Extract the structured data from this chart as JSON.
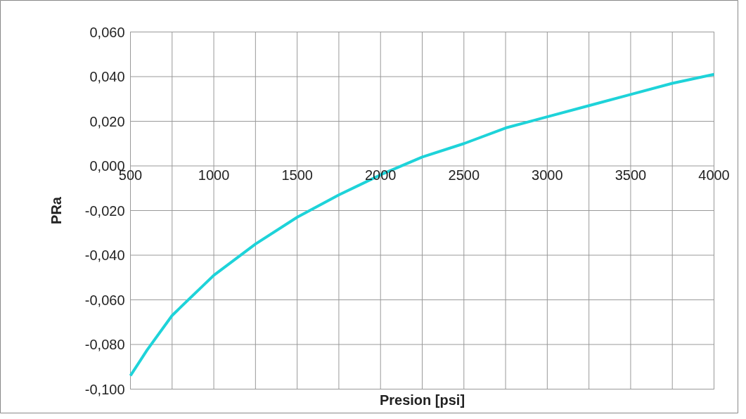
{
  "chart_data": {
    "type": "line",
    "xlabel": "Presion [psi]",
    "ylabel": "PRa",
    "x": [
      500,
      600,
      750,
      1000,
      1250,
      1500,
      1750,
      2000,
      2250,
      2500,
      2750,
      3000,
      3250,
      3500,
      3750,
      4000
    ],
    "series": [
      {
        "color": "#1ed3d9",
        "values": [
          -0.094,
          -0.0825,
          -0.067,
          -0.049,
          -0.035,
          -0.023,
          -0.013,
          -0.004,
          0.004,
          0.01,
          0.017,
          0.022,
          0.027,
          0.032,
          0.037,
          0.041
        ]
      }
    ],
    "xlim": [
      500,
      4000
    ],
    "ylim": [
      -0.1,
      0.06
    ],
    "xticks": [
      500,
      {
        "value": 750,
        "label": null
      },
      1000,
      {
        "value": 1250,
        "label": null
      },
      1500,
      {
        "value": 1750,
        "label": null
      },
      2000,
      {
        "value": 2250,
        "label": null
      },
      2500,
      {
        "value": 2750,
        "label": null
      },
      3000,
      {
        "value": 3250,
        "label": null
      },
      3500,
      {
        "value": 3750,
        "label": null
      },
      4000
    ],
    "yticks": [
      {
        "value": -0.1,
        "label": "-0,100"
      },
      {
        "value": -0.08,
        "label": "-0,080"
      },
      {
        "value": -0.06,
        "label": "-0,060"
      },
      {
        "value": -0.04,
        "label": "-0,040"
      },
      {
        "value": -0.02,
        "label": "-0,020"
      },
      {
        "value": 0,
        "label": "0,000"
      },
      {
        "value": 0.02,
        "label": "0,020"
      },
      {
        "value": 0.04,
        "label": "0,040"
      },
      {
        "value": 0.06,
        "label": "0,060"
      }
    ],
    "grid": true,
    "marker": "none",
    "line_style": "solid"
  }
}
